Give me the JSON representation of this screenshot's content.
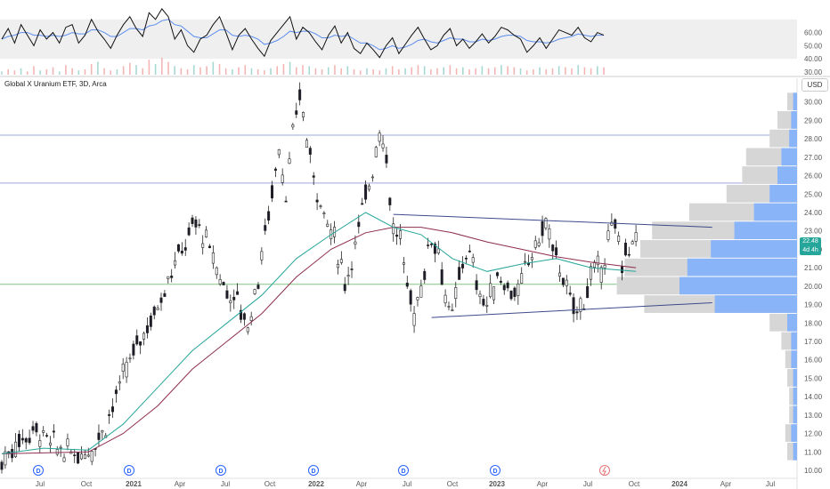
{
  "title": "Global X Uranium ETF, 3D, Arca",
  "currency_label": "USD",
  "current_price_label": "22.48",
  "countdown_label": "4d 4h",
  "colors": {
    "up": "#26a69a",
    "down": "#ef5350",
    "candle": "#1c1c2a",
    "ma_fast": "#26a69a",
    "ma_slow": "#8e2c50",
    "trendline": "#3d4a8a",
    "hline": "#9fa8da",
    "hline_green": "#81c784",
    "profile_gray": "#d6d6d6",
    "profile_blue": "#8ab4f8",
    "rsi_black": "#111111",
    "rsi_blue": "#5b8def"
  },
  "chart_data": {
    "type": "candlestick",
    "price_axis": {
      "min": 10,
      "max": 31,
      "ticks": [
        "30.00",
        "29.00",
        "28.00",
        "27.00",
        "26.00",
        "25.00",
        "24.00",
        "23.00",
        "22.00",
        "21.00",
        "20.00",
        "19.00",
        "18.00",
        "17.00",
        "16.00",
        "15.00",
        "14.00",
        "13.00",
        "12.00",
        "11.00",
        "10.00"
      ]
    },
    "time_axis": {
      "ticks": [
        "Jul",
        "Oct",
        "2021",
        "Apr",
        "Jul",
        "Oct",
        "2022",
        "Apr",
        "Jul",
        "Oct",
        "2023",
        "Apr",
        "Jul",
        "Oct",
        "2024",
        "Apr",
        "Jul"
      ]
    },
    "dividend_markers": [
      "D",
      "D",
      "D",
      "D",
      "D",
      "D"
    ],
    "price_path": [
      [
        0,
        10.4
      ],
      [
        3,
        11.2
      ],
      [
        6,
        11.8
      ],
      [
        10,
        12.2
      ],
      [
        14,
        11.5
      ],
      [
        18,
        11.0
      ],
      [
        22,
        10.9
      ],
      [
        26,
        11.2
      ],
      [
        30,
        12.5
      ],
      [
        33,
        14.0
      ],
      [
        36,
        15.5
      ],
      [
        40,
        17.2
      ],
      [
        44,
        18.5
      ],
      [
        48,
        20.5
      ],
      [
        52,
        22.0
      ],
      [
        56,
        23.5
      ],
      [
        60,
        22.0
      ],
      [
        64,
        20.0
      ],
      [
        68,
        19.2
      ],
      [
        71,
        17.8
      ],
      [
        74,
        20.5
      ],
      [
        77,
        24.0
      ],
      [
        80,
        27.5
      ],
      [
        82,
        25.0
      ],
      [
        84,
        28.0
      ],
      [
        86,
        30.5
      ],
      [
        88,
        28.0
      ],
      [
        90,
        26.0
      ],
      [
        93,
        24.0
      ],
      [
        96,
        22.5
      ],
      [
        99,
        20.2
      ],
      [
        101,
        21.5
      ],
      [
        104,
        24.0
      ],
      [
        107,
        26.5
      ],
      [
        109,
        28.5
      ],
      [
        111,
        27.0
      ],
      [
        113,
        23.0
      ],
      [
        115,
        22.5
      ],
      [
        117,
        20.0
      ],
      [
        119,
        18.5
      ],
      [
        121,
        20.0
      ],
      [
        124,
        22.8
      ],
      [
        126,
        22.0
      ],
      [
        128,
        19.5
      ],
      [
        130,
        18.2
      ],
      [
        132,
        20.5
      ],
      [
        134,
        22.0
      ],
      [
        136,
        21.0
      ],
      [
        138,
        19.5
      ],
      [
        140,
        19.0
      ],
      [
        143,
        20.5
      ],
      [
        146,
        20.0
      ],
      [
        149,
        19.5
      ],
      [
        152,
        21.5
      ],
      [
        155,
        22.5
      ],
      [
        157,
        23.5
      ],
      [
        159,
        22.0
      ],
      [
        162,
        20.5
      ],
      [
        164,
        19.0
      ],
      [
        167,
        18.8
      ],
      [
        170,
        20.5
      ],
      [
        173,
        21.0
      ],
      [
        175,
        22.5
      ],
      [
        177,
        23.2
      ],
      [
        179,
        21.5
      ],
      [
        181,
        22.0
      ],
      [
        183,
        22.5
      ]
    ],
    "ma_fast_path": [
      [
        0,
        10.9
      ],
      [
        12,
        11.2
      ],
      [
        25,
        11.1
      ],
      [
        35,
        12.5
      ],
      [
        45,
        14.5
      ],
      [
        55,
        16.5
      ],
      [
        65,
        18.0
      ],
      [
        75,
        19.5
      ],
      [
        85,
        21.5
      ],
      [
        95,
        22.8
      ],
      [
        105,
        24.0
      ],
      [
        113,
        23.2
      ],
      [
        121,
        22.8
      ],
      [
        130,
        21.5
      ],
      [
        140,
        20.8
      ],
      [
        150,
        21.2
      ],
      [
        160,
        21.5
      ],
      [
        170,
        21.0
      ],
      [
        183,
        20.8
      ]
    ],
    "ma_slow_path": [
      [
        0,
        10.9
      ],
      [
        25,
        11.0
      ],
      [
        35,
        12.0
      ],
      [
        45,
        13.5
      ],
      [
        55,
        15.5
      ],
      [
        65,
        17.0
      ],
      [
        75,
        18.5
      ],
      [
        85,
        20.5
      ],
      [
        95,
        22.0
      ],
      [
        105,
        22.9
      ],
      [
        113,
        23.2
      ],
      [
        121,
        23.2
      ],
      [
        130,
        22.9
      ],
      [
        140,
        22.4
      ],
      [
        150,
        22.0
      ],
      [
        160,
        21.6
      ],
      [
        170,
        21.3
      ],
      [
        183,
        21.0
      ]
    ],
    "trendlines": [
      {
        "from": [
          113,
          23.9
        ],
        "to": [
          205,
          23.2
        ]
      },
      {
        "from": [
          124,
          18.3
        ],
        "to": [
          205,
          19.1
        ]
      }
    ],
    "horizontal_levels": [
      28.2,
      25.6,
      20.1
    ],
    "volume_profile": [
      {
        "price": 30.0,
        "gray": 0.05,
        "blue": 0.02
      },
      {
        "price": 29.0,
        "gray": 0.1,
        "blue": 0.03
      },
      {
        "price": 28.0,
        "gray": 0.14,
        "blue": 0.04
      },
      {
        "price": 27.0,
        "gray": 0.26,
        "blue": 0.08
      },
      {
        "price": 26.0,
        "gray": 0.28,
        "blue": 0.1
      },
      {
        "price": 25.0,
        "gray": 0.36,
        "blue": 0.14
      },
      {
        "price": 24.0,
        "gray": 0.55,
        "blue": 0.22
      },
      {
        "price": 23.0,
        "gray": 0.74,
        "blue": 0.32
      },
      {
        "price": 22.0,
        "gray": 0.8,
        "blue": 0.44
      },
      {
        "price": 21.0,
        "gray": 0.88,
        "blue": 0.56
      },
      {
        "price": 20.0,
        "gray": 0.92,
        "blue": 0.6
      },
      {
        "price": 19.0,
        "gray": 0.78,
        "blue": 0.42
      },
      {
        "price": 18.0,
        "gray": 0.14,
        "blue": 0.05
      },
      {
        "price": 17.0,
        "gray": 0.08,
        "blue": 0.03
      },
      {
        "price": 16.0,
        "gray": 0.06,
        "blue": 0.03
      },
      {
        "price": 15.0,
        "gray": 0.05,
        "blue": 0.02
      },
      {
        "price": 14.0,
        "gray": 0.04,
        "blue": 0.02
      },
      {
        "price": 13.0,
        "gray": 0.04,
        "blue": 0.02
      },
      {
        "price": 12.0,
        "gray": 0.06,
        "blue": 0.03
      },
      {
        "price": 11.0,
        "gray": 0.05,
        "blue": 0.02
      }
    ],
    "rsi": {
      "ticks": [
        "60.00",
        "50.00",
        "40.00",
        "30.00"
      ],
      "band": [
        40,
        70
      ],
      "axis_range": [
        28,
        82
      ],
      "values": [
        55,
        63,
        52,
        66,
        58,
        50,
        62,
        55,
        60,
        52,
        64,
        66,
        52,
        58,
        70,
        61,
        55,
        48,
        58,
        66,
        72,
        63,
        57,
        75,
        70,
        78,
        72,
        55,
        62,
        50,
        45,
        55,
        58,
        66,
        72,
        60,
        47,
        58,
        63,
        55,
        48,
        42,
        54,
        60,
        66,
        72,
        55,
        64,
        60,
        53,
        47,
        58,
        65,
        52,
        60,
        48,
        44,
        52,
        47,
        41,
        50,
        56,
        44,
        51,
        58,
        64,
        55,
        47,
        50,
        58,
        63,
        50,
        55,
        48,
        53,
        59,
        52,
        57,
        64,
        62,
        58,
        55,
        45,
        50,
        56,
        48,
        55,
        62,
        60,
        58,
        64,
        56,
        53,
        60,
        58
      ],
      "signal": [
        55,
        57,
        58,
        60,
        60,
        58,
        58,
        57,
        58,
        57,
        58,
        60,
        59,
        59,
        62,
        62,
        60,
        57,
        57,
        60,
        63,
        63,
        62,
        65,
        66,
        69,
        70,
        66,
        65,
        61,
        57,
        56,
        56,
        59,
        62,
        62,
        58,
        57,
        58,
        57,
        55,
        51,
        52,
        54,
        57,
        61,
        60,
        61,
        61,
        59,
        56,
        56,
        58,
        57,
        58,
        55,
        52,
        52,
        50,
        47,
        48,
        50,
        48,
        49,
        51,
        54,
        55,
        53,
        52,
        54,
        56,
        55,
        55,
        53,
        53,
        55,
        54,
        55,
        57,
        58,
        58,
        57,
        54,
        53,
        53,
        52,
        53,
        55,
        56,
        57,
        59,
        58,
        57,
        58,
        58
      ],
      "volume": [
        3,
        5,
        4,
        6,
        3,
        8,
        4,
        5,
        7,
        3,
        9,
        6,
        4,
        5,
        10,
        12,
        6,
        4,
        5,
        8,
        11,
        9,
        6,
        14,
        10,
        16,
        12,
        8,
        6,
        5,
        9,
        7,
        8,
        12,
        10,
        6,
        5,
        7,
        9,
        6,
        5,
        4,
        6,
        8,
        10,
        12,
        7,
        9,
        8,
        6,
        5,
        7,
        9,
        6,
        8,
        5,
        4,
        6,
        5,
        4,
        6,
        8,
        5,
        6,
        7,
        9,
        8,
        5,
        6,
        7,
        9,
        6,
        7,
        5,
        6,
        8,
        6,
        7,
        9,
        8,
        7,
        6,
        4,
        5,
        7,
        5,
        6,
        8,
        7,
        6,
        9,
        7,
        6,
        8,
        7
      ]
    }
  }
}
